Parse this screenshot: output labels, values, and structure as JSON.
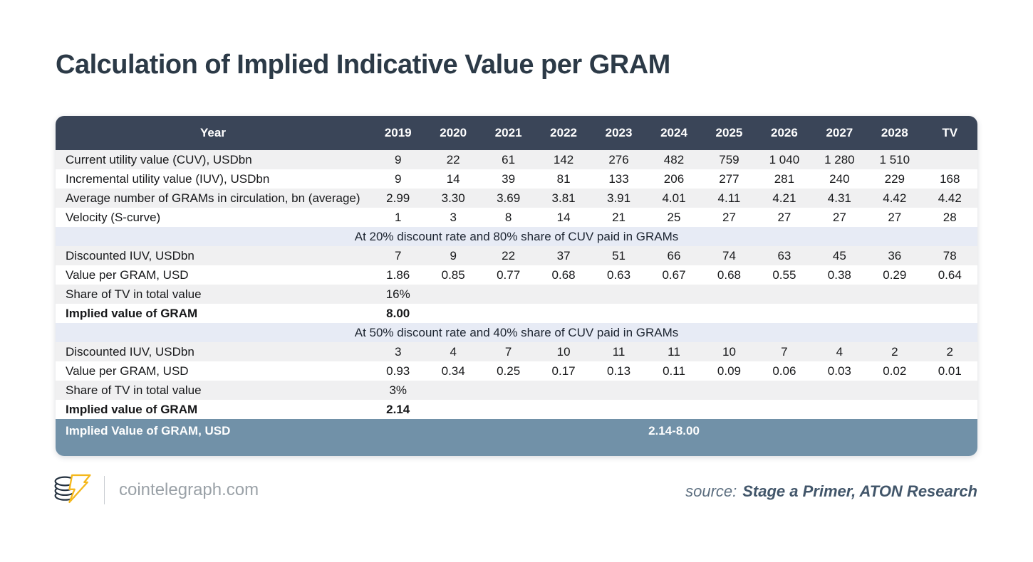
{
  "title": "Calculation of Implied Indicative Value per GRAM",
  "colors": {
    "header_bg": "#3A4558",
    "footer_bg": "#7191A8",
    "section_bg": "#E7EBF5",
    "stripe_bg": "#F0F0F1",
    "title_color": "#2C3A47",
    "logo_gold": "#F5B81C",
    "logo_navy": "#24313F"
  },
  "chart_data": {
    "type": "table",
    "title": "Calculation of Implied Indicative Value per GRAM",
    "columns": [
      "Year",
      "2019",
      "2020",
      "2021",
      "2022",
      "2023",
      "2024",
      "2025",
      "2026",
      "2027",
      "2028",
      "TV"
    ],
    "rows": [
      {
        "label": "Current utility value (CUV), USDbn",
        "values": [
          "9",
          "22",
          "61",
          "142",
          "276",
          "482",
          "759",
          "1 040",
          "1 280",
          "1 510",
          ""
        ]
      },
      {
        "label": "Incremental utility value (IUV), USDbn",
        "values": [
          "9",
          "14",
          "39",
          "81",
          "133",
          "206",
          "277",
          "281",
          "240",
          "229",
          "168"
        ]
      },
      {
        "label": "Average number of GRAMs in circulation, bn (average)",
        "values": [
          "2.99",
          "3.30",
          "3.69",
          "3.81",
          "3.91",
          "4.01",
          "4.11",
          "4.21",
          "4.31",
          "4.42",
          "4.42"
        ]
      },
      {
        "label": "Velocity (S-curve)",
        "values": [
          "1",
          "3",
          "8",
          "14",
          "21",
          "25",
          "27",
          "27",
          "27",
          "27",
          "28"
        ]
      },
      {
        "section": "At 20% discount rate and 80% share of CUV paid in GRAMs"
      },
      {
        "label": "Discounted IUV, USDbn",
        "values": [
          "7",
          "9",
          "22",
          "37",
          "51",
          "66",
          "74",
          "63",
          "45",
          "36",
          "78"
        ]
      },
      {
        "label": "Value per GRAM, USD",
        "values": [
          "1.86",
          "0.85",
          "0.77",
          "0.68",
          "0.63",
          "0.67",
          "0.68",
          "0.55",
          "0.38",
          "0.29",
          "0.64"
        ]
      },
      {
        "label": "Share of TV in total value",
        "values": [
          "16%",
          "",
          "",
          "",
          "",
          "",
          "",
          "",
          "",
          "",
          ""
        ]
      },
      {
        "label": "Implied value of GRAM",
        "values": [
          "8.00",
          "",
          "",
          "",
          "",
          "",
          "",
          "",
          "",
          "",
          ""
        ],
        "emphasis": true
      },
      {
        "section": "At 50% discount rate and 40% share of CUV paid in GRAMs"
      },
      {
        "label": "Discounted IUV, USDbn",
        "values": [
          "3",
          "4",
          "7",
          "10",
          "11",
          "11",
          "10",
          "7",
          "4",
          "2",
          "2"
        ]
      },
      {
        "label": "Value per GRAM, USD",
        "values": [
          "0.93",
          "0.34",
          "0.25",
          "0.17",
          "0.13",
          "0.11",
          "0.09",
          "0.06",
          "0.03",
          "0.02",
          "0.01"
        ]
      },
      {
        "label": "Share of TV in total value",
        "values": [
          "3%",
          "",
          "",
          "",
          "",
          "",
          "",
          "",
          "",
          "",
          ""
        ]
      },
      {
        "label": "Implied value of GRAM",
        "values": [
          "2.14",
          "",
          "",
          "",
          "",
          "",
          "",
          "",
          "",
          "",
          ""
        ],
        "emphasis": true
      }
    ],
    "footer": {
      "label": "Implied Value of GRAM, USD",
      "value": "2.14-8.00"
    }
  },
  "branding": {
    "site": "cointelegraph.com",
    "logo": "cointelegraph-coin-bolt-icon"
  },
  "source": {
    "prefix": "source:",
    "text": "Stage a Primer, ATON Research"
  }
}
